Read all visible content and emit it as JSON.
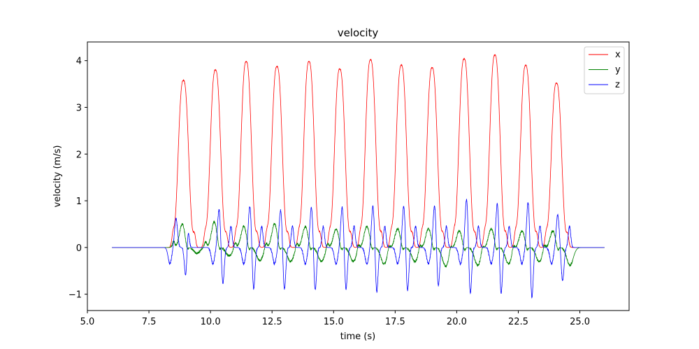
{
  "chart_data": {
    "type": "line",
    "title": "velocity",
    "xlabel": "time (s)",
    "ylabel": "velocity (m/s)",
    "xlim": [
      5.0,
      27.0
    ],
    "ylim": [
      -1.35,
      4.4
    ],
    "xticks": [
      5.0,
      7.5,
      10.0,
      12.5,
      15.0,
      17.5,
      20.0,
      22.5,
      25.0
    ],
    "xtick_labels": [
      "5.0",
      "7.5",
      "10.0",
      "12.5",
      "15.0",
      "17.5",
      "20.0",
      "22.5",
      "25.0"
    ],
    "yticks": [
      -1,
      0,
      1,
      2,
      3,
      4
    ],
    "ytick_labels": [
      "−1",
      "0",
      "1",
      "2",
      "3",
      "4"
    ],
    "grid": false,
    "legend_position": "top-right",
    "time_range": [
      6.0,
      26.0
    ],
    "series": [
      {
        "name": "x",
        "color": "#ff0000",
        "description_points": {
          "peak_times": [
            8.9,
            10.2,
            11.45,
            12.7,
            14.0,
            15.25,
            16.5,
            17.75,
            19.0,
            20.3,
            21.55,
            22.8,
            24.05
          ],
          "peak_values": [
            3.58,
            3.8,
            3.98,
            3.88,
            3.98,
            3.82,
            4.02,
            3.9,
            3.85,
            4.04,
            4.12,
            3.9,
            3.52
          ]
        }
      },
      {
        "name": "y",
        "color": "#008000",
        "description_points": {
          "pos_times": [
            8.85,
            10.15,
            11.35,
            12.6,
            13.85,
            15.1,
            16.35,
            17.6,
            18.85,
            20.1,
            21.4,
            22.65,
            23.9
          ],
          "pos_values": [
            0.5,
            0.55,
            0.45,
            0.5,
            0.45,
            0.4,
            0.45,
            0.4,
            0.4,
            0.35,
            0.4,
            0.35,
            0.35
          ],
          "neg_times": [
            9.45,
            10.75,
            12.0,
            13.25,
            14.5,
            15.8,
            17.05,
            18.3,
            19.55,
            20.85,
            22.1,
            23.35,
            24.6
          ],
          "neg_values": [
            -0.12,
            -0.18,
            -0.28,
            -0.3,
            -0.3,
            -0.3,
            -0.35,
            -0.3,
            -0.4,
            -0.38,
            -0.35,
            -0.3,
            -0.38
          ]
        }
      },
      {
        "name": "z",
        "color": "#0000ff",
        "description_points": {
          "pos_times": [
            8.6,
            10.35,
            11.6,
            12.85,
            14.1,
            15.35,
            16.6,
            17.85,
            19.1,
            20.4,
            21.65,
            22.9,
            24.1
          ],
          "pos_values": [
            0.62,
            0.82,
            0.9,
            0.82,
            0.88,
            0.88,
            0.9,
            0.9,
            0.9,
            1.04,
            0.95,
            0.98,
            0.7
          ],
          "neg_times": [
            9.0,
            10.5,
            11.75,
            13.0,
            14.25,
            15.5,
            16.75,
            18.0,
            19.25,
            20.55,
            21.8,
            23.05,
            24.3
          ],
          "neg_values": [
            -0.68,
            -0.8,
            -0.92,
            -0.92,
            -0.95,
            -0.92,
            -0.98,
            -0.95,
            -0.85,
            -1.02,
            -1.02,
            -1.1,
            -0.72
          ]
        }
      }
    ]
  }
}
